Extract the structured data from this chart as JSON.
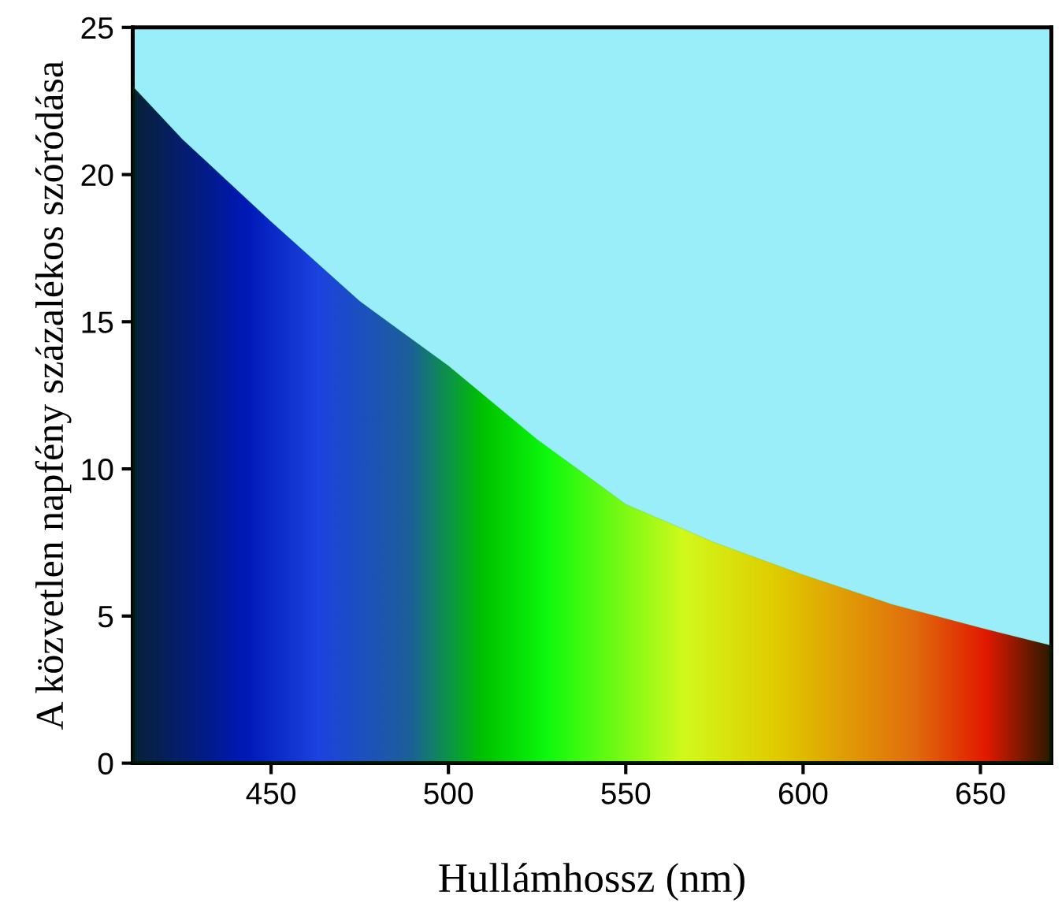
{
  "chart_data": {
    "type": "area",
    "xlabel": "Hullámhossz (nm)",
    "ylabel": "A közvetlen napfény százalékos szóródása",
    "x": [
      411,
      425,
      450,
      475,
      500,
      525,
      550,
      575,
      600,
      625,
      650,
      670
    ],
    "series": [
      {
        "color": "#00d000",
        "values": [
          23.0,
          21.2,
          18.4,
          15.7,
          13.5,
          11.0,
          8.8,
          7.5,
          6.4,
          5.4,
          4.6,
          4.0
        ]
      }
    ],
    "xlim": [
      411,
      670
    ],
    "ylim": [
      0,
      25
    ],
    "xticks": [
      450,
      500,
      550,
      600,
      650
    ],
    "yticks": [
      0,
      5,
      10,
      15,
      20,
      25
    ],
    "grid": false,
    "legend": false
  }
}
